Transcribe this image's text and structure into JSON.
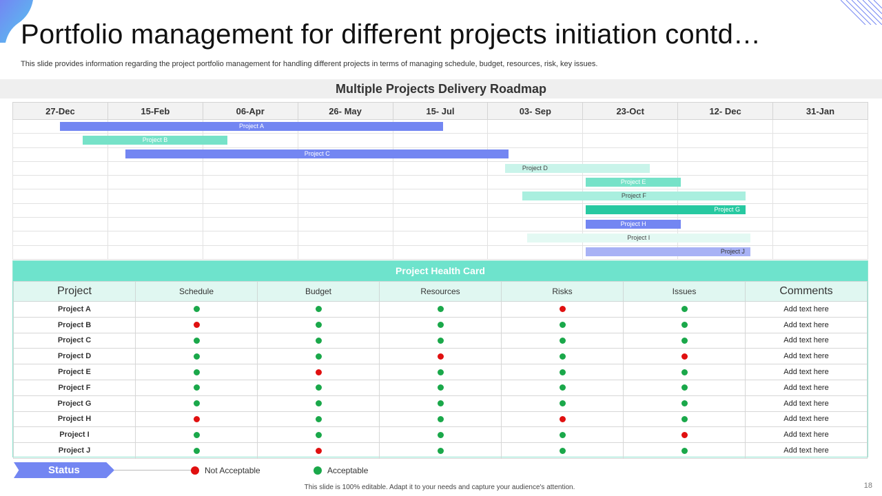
{
  "header": {
    "title": "Portfolio management for different projects initiation contd…",
    "subtitle": "This slide provides information regarding the project portfolio management for handling different projects in terms of managing schedule, budget, resources, risk, key issues."
  },
  "roadmap": {
    "title": "Multiple Projects Delivery Roadmap",
    "columns": [
      "27-Dec",
      "15-Feb",
      "06-Apr",
      "26- May",
      "15- Jul",
      "03- Sep",
      "23-Oct",
      "12- Dec",
      "31-Jan"
    ],
    "projects": [
      {
        "name": "Project A",
        "start": 0.5,
        "end": 4.53,
        "color": "#7386f2",
        "text_color": "#ffffff",
        "align": "center"
      },
      {
        "name": "Project B",
        "start": 0.74,
        "end": 2.26,
        "color": "#76e2c8",
        "text_color": "#ffffff",
        "align": "center"
      },
      {
        "name": "Project C",
        "start": 1.19,
        "end": 5.22,
        "color": "#7386f2",
        "text_color": "#ffffff",
        "align": "center"
      },
      {
        "name": "Project D",
        "start": 5.18,
        "end": 6.7,
        "color": "#c9f4ea",
        "text_color": "#444444",
        "align": "left"
      },
      {
        "name": "Project E",
        "start": 6.03,
        "end": 7.03,
        "color": "#76e2c8",
        "text_color": "#ffffff",
        "align": "center"
      },
      {
        "name": "Project F",
        "start": 5.36,
        "end": 7.71,
        "color": "#a9efdf",
        "text_color": "#444444",
        "align": "center"
      },
      {
        "name": "Project G",
        "start": 6.03,
        "end": 7.71,
        "color": "#27c9a1",
        "text_color": "#ffffff",
        "align": "right"
      },
      {
        "name": "Project H",
        "start": 6.03,
        "end": 7.03,
        "color": "#7386f2",
        "text_color": "#ffffff",
        "align": "center"
      },
      {
        "name": "Project I",
        "start": 5.41,
        "end": 7.76,
        "color": "#e3f9f3",
        "text_color": "#444444",
        "align": "center"
      },
      {
        "name": "Project J",
        "start": 6.03,
        "end": 7.76,
        "color": "#a8b2f5",
        "text_color": "#333333",
        "align": "right"
      }
    ]
  },
  "health": {
    "title": "Project Health Card",
    "columns": [
      "Project",
      "Schedule",
      "Budget",
      "Resources",
      "Risks",
      "Issues",
      "Comments"
    ],
    "rows": [
      {
        "project": "Project A",
        "status": [
          "ok",
          "ok",
          "ok",
          "bad",
          "ok"
        ],
        "comment": "Add text here"
      },
      {
        "project": "Project B",
        "status": [
          "bad",
          "ok",
          "ok",
          "ok",
          "ok"
        ],
        "comment": "Add text here"
      },
      {
        "project": "Project C",
        "status": [
          "ok",
          "ok",
          "ok",
          "ok",
          "ok"
        ],
        "comment": "Add text here"
      },
      {
        "project": "Project D",
        "status": [
          "ok",
          "ok",
          "bad",
          "ok",
          "bad"
        ],
        "comment": "Add text here"
      },
      {
        "project": "Project E",
        "status": [
          "ok",
          "bad",
          "ok",
          "ok",
          "ok"
        ],
        "comment": "Add text here"
      },
      {
        "project": "Project F",
        "status": [
          "ok",
          "ok",
          "ok",
          "ok",
          "ok"
        ],
        "comment": "Add text here"
      },
      {
        "project": "Project G",
        "status": [
          "ok",
          "ok",
          "ok",
          "ok",
          "ok"
        ],
        "comment": "Add text here"
      },
      {
        "project": "Project H",
        "status": [
          "bad",
          "ok",
          "ok",
          "bad",
          "ok"
        ],
        "comment": "Add text here"
      },
      {
        "project": "Project I",
        "status": [
          "ok",
          "ok",
          "ok",
          "ok",
          "bad"
        ],
        "comment": "Add text here"
      },
      {
        "project": "Project J",
        "status": [
          "ok",
          "bad",
          "ok",
          "ok",
          "ok"
        ],
        "comment": "Add text here"
      }
    ]
  },
  "legend": {
    "status_label": "Status",
    "not_acceptable": "Not Acceptable",
    "acceptable": "Acceptable"
  },
  "colors": {
    "acceptable": "#1aa84a",
    "not_acceptable": "#e01010"
  },
  "footer": {
    "note": "This slide is 100% editable. Adapt it to your needs and capture your audience's attention.",
    "page_number": "18"
  }
}
